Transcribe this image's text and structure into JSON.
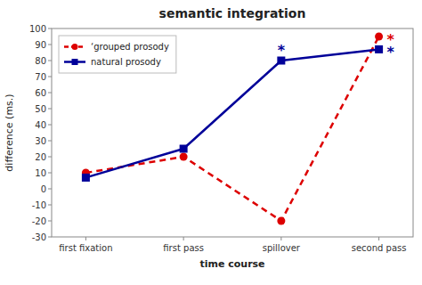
{
  "chart_data": {
    "type": "line",
    "title": "semantic integration",
    "x_label": "time course",
    "y_label": "difference (ms.)",
    "categories": [
      "first fixation",
      "first pass",
      "spillover",
      "second pass"
    ],
    "series": [
      {
        "name": "‘grouped prosody",
        "color": "#dd0000",
        "values": [
          10,
          20,
          -20,
          95
        ],
        "marker": "circle",
        "line_style": "dashed"
      },
      {
        "name": "natural prosody",
        "color": "#000099",
        "values": [
          7,
          25,
          80,
          87
        ],
        "marker": "square",
        "line_style": "solid"
      }
    ],
    "ylim": [
      -30,
      100
    ],
    "yticks": [
      -30,
      -20,
      -10,
      0,
      10,
      20,
      30,
      40,
      50,
      60,
      70,
      80,
      90,
      100
    ],
    "grid": false,
    "legend": "upper left",
    "annotations": [
      {
        "text": "*",
        "category": "spillover",
        "y": 80,
        "color": "#000099",
        "position": "above"
      },
      {
        "text": "*",
        "category": "second pass",
        "y": 95,
        "color": "#dd0000",
        "position": "right"
      },
      {
        "text": "*",
        "category": "second pass",
        "y": 87,
        "color": "#000099",
        "position": "right"
      }
    ]
  }
}
